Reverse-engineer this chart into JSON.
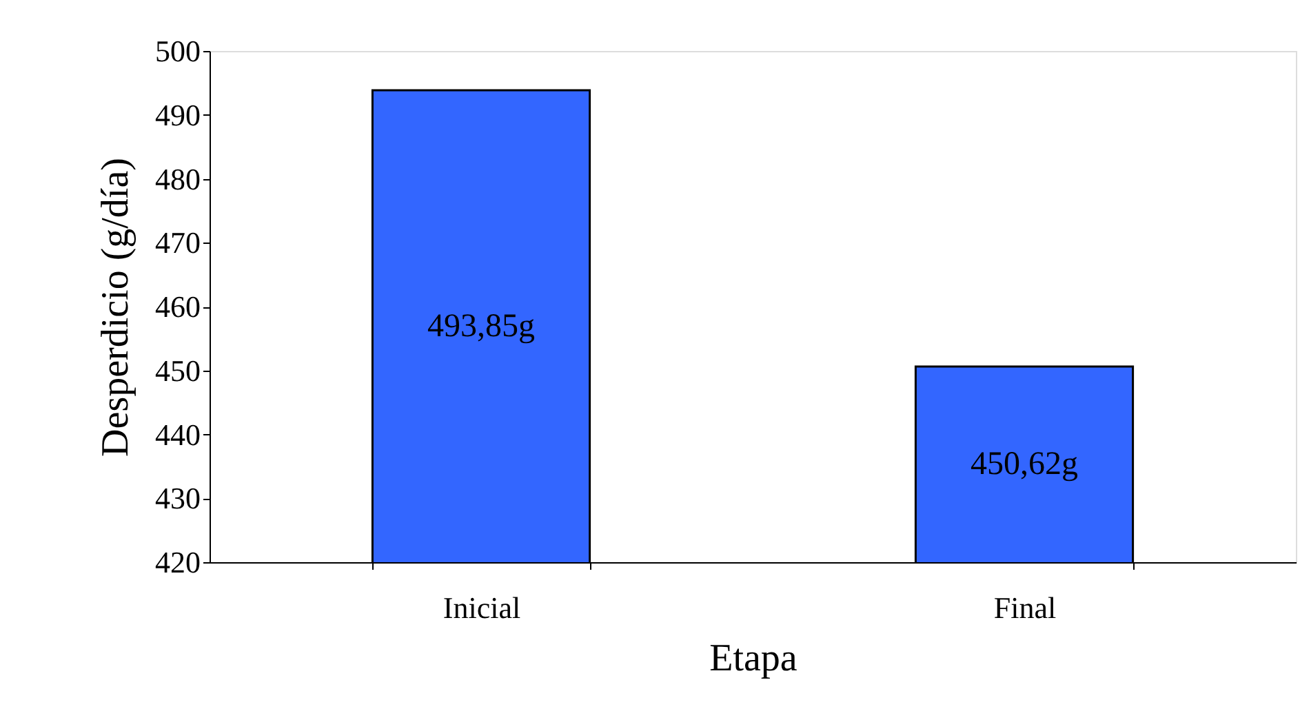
{
  "chart_data": {
    "type": "bar",
    "xlabel": "Etapa",
    "ylabel": "Desperdicio (g/día)",
    "categories": [
      "Inicial",
      "Final"
    ],
    "series": [
      {
        "color": "#3366ff",
        "values": [
          493.85,
          450.62
        ],
        "value_labels": [
          "493,85g",
          "450,62g"
        ]
      }
    ],
    "ylim": [
      420,
      500
    ],
    "yticks": [
      420,
      430,
      440,
      450,
      460,
      470,
      480,
      490,
      500
    ],
    "grid": false
  }
}
